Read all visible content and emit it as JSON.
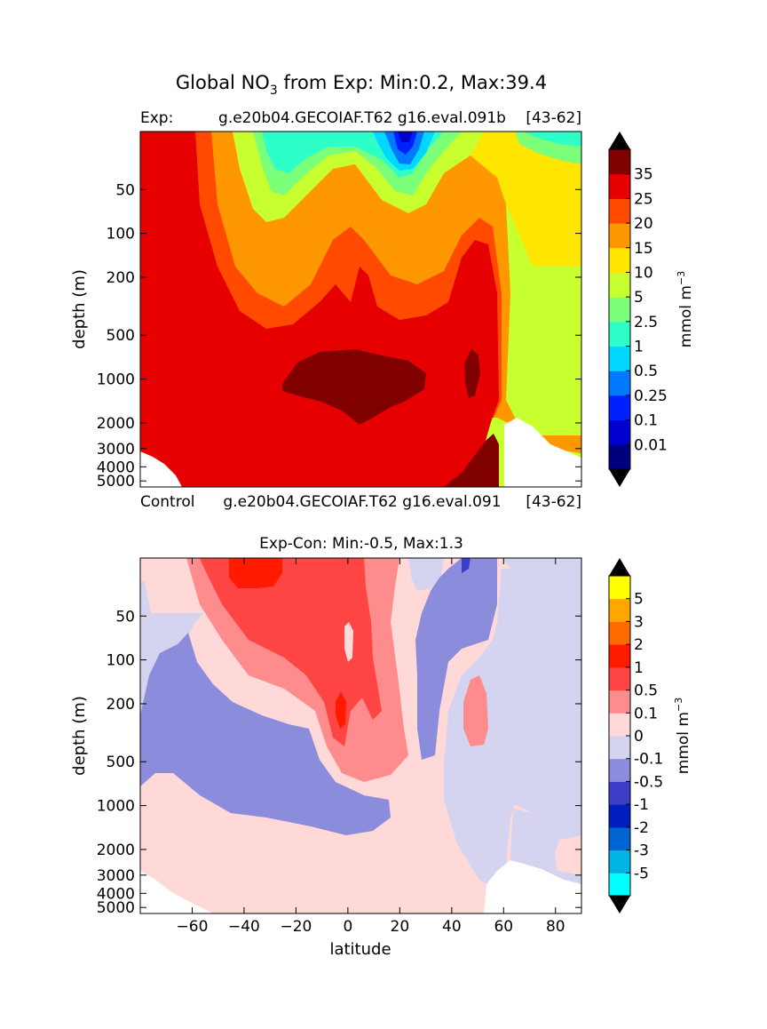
{
  "figure": {
    "suptitle_prefix": "Global NO",
    "suptitle_sub": "3",
    "suptitle_suffix": " from Exp: Min:0.2, Max:39.4"
  },
  "top_panel": {
    "left_title": "Exp:",
    "center_title": "g.e20b04.GECOIAF.T62 g16.eval.091b",
    "right_title": "[43-62]",
    "bottom_left_title": "Control",
    "bottom_center_title": "g.e20b04.GECOIAF.T62 g16.eval.091",
    "bottom_right_title": "[43-62]",
    "ylabel": "depth (m)",
    "colorbar_label": "mmol m",
    "colorbar_exp": "−3"
  },
  "bottom_panel": {
    "title": "Exp-Con: Min:-0.5, Max:1.3",
    "ylabel": "depth (m)",
    "xlabel": "latitude",
    "colorbar_label": "mmol m",
    "colorbar_exp": "−3"
  },
  "chart_data": [
    {
      "type": "heatmap",
      "title": "Global NO3 from Exp: Min:0.2, Max:39.4",
      "subtitle": "Exp: g.e20b04.GECOIAF.T62 g16.eval.091b [43-62]",
      "xlabel": "latitude",
      "ylabel": "depth (m)",
      "xlim": [
        -80,
        90
      ],
      "y_scale": "log",
      "y_inverted": true,
      "ylim": [
        5500,
        20
      ],
      "yticks": [
        "50",
        "100",
        "200",
        "500",
        "1000",
        "2000",
        "3000",
        "4000",
        "5000"
      ],
      "ytick_values": [
        50,
        100,
        200,
        500,
        1000,
        2000,
        3000,
        4000,
        5000
      ],
      "colorbar": {
        "label": "mmol m-3",
        "levels": [
          "0.01",
          "0.1",
          "0.25",
          "0.5",
          "1",
          "2.5",
          "5",
          "10",
          "15",
          "20",
          "25",
          "35"
        ],
        "colors": [
          "#00007f",
          "#0000d0",
          "#0020ff",
          "#0078ff",
          "#00d8ff",
          "#2effc8",
          "#7cff79",
          "#c8ff2e",
          "#ffe600",
          "#ff9800",
          "#ff4a00",
          "#e60000",
          "#800000"
        ],
        "extend": "both"
      },
      "min": 0.2,
      "max": 39.4
    },
    {
      "type": "heatmap",
      "title": "Exp-Con: Min:-0.5, Max:1.3",
      "subtitle": "Control g.e20b04.GECOIAF.T62 g16.eval.091 [43-62]",
      "xlabel": "latitude",
      "ylabel": "depth (m)",
      "xlim": [
        -80,
        90
      ],
      "xticks": [
        "−60",
        "−40",
        "−20",
        "0",
        "20",
        "40",
        "60",
        "80"
      ],
      "xtick_values": [
        -60,
        -40,
        -20,
        0,
        20,
        40,
        60,
        80
      ],
      "y_scale": "log",
      "y_inverted": true,
      "ylim": [
        5500,
        20
      ],
      "yticks": [
        "50",
        "100",
        "200",
        "500",
        "1000",
        "2000",
        "3000",
        "4000",
        "5000"
      ],
      "ytick_values": [
        50,
        100,
        200,
        500,
        1000,
        2000,
        3000,
        4000,
        5000
      ],
      "colorbar": {
        "label": "mmol m-3",
        "levels": [
          "-5",
          "-3",
          "-2",
          "-1",
          "-0.5",
          "-0.1",
          "0",
          "0.1",
          "0.5",
          "1",
          "2",
          "3",
          "5"
        ],
        "colors": [
          "#00ffff",
          "#00b4e6",
          "#0064d2",
          "#001ebe",
          "#3c3cc8",
          "#8c8cdc",
          "#d4d4f0",
          "#ffd8d8",
          "#ff8c8c",
          "#ff4444",
          "#ff1a00",
          "#ff6a00",
          "#ffa600",
          "#ffff00"
        ],
        "extend": "both"
      },
      "min": -0.5,
      "max": 1.3
    }
  ]
}
